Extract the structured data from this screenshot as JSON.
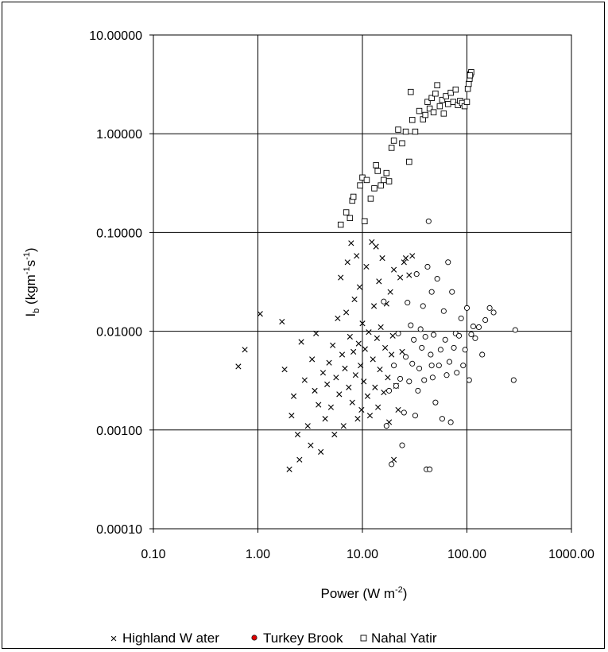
{
  "chart_data": {
    "type": "scatter",
    "title": "",
    "xlabel": "Power (W m",
    "xlabel_sup": "-2",
    "xlabel_end": ")",
    "ylabel_base": "I",
    "ylabel_sub": "b",
    "ylabel_mid": " (kgm",
    "ylabel_sup1": "-1",
    "ylabel_s": "s",
    "ylabel_sup2": "-1",
    "ylabel_end": ")",
    "x_scale": "log",
    "y_scale": "log",
    "xlim": [
      0.1,
      1000
    ],
    "ylim": [
      0.0001,
      10
    ],
    "x_ticks": [
      {
        "value": 0.1,
        "label": "0.10"
      },
      {
        "value": 1,
        "label": "1.00"
      },
      {
        "value": 10,
        "label": "10.00"
      },
      {
        "value": 100,
        "label": "100.00"
      },
      {
        "value": 1000,
        "label": "1000.00"
      }
    ],
    "y_ticks": [
      {
        "value": 0.0001,
        "label": "0.00010"
      },
      {
        "value": 0.001,
        "label": "0.00100"
      },
      {
        "value": 0.01,
        "label": "0.01000"
      },
      {
        "value": 0.1,
        "label": "0.10000"
      },
      {
        "value": 1,
        "label": "1.00000"
      },
      {
        "value": 10,
        "label": "10.00000"
      }
    ],
    "grid": true,
    "legend_position": "bottom",
    "series": [
      {
        "name": "Highland W ater",
        "marker": "x",
        "color": "#000000",
        "points": [
          [
            0.65,
            0.0044
          ],
          [
            0.75,
            0.0065
          ],
          [
            1.05,
            0.015
          ],
          [
            1.7,
            0.0125
          ],
          [
            1.8,
            0.0041
          ],
          [
            2.1,
            0.0014
          ],
          [
            2.0,
            0.0004
          ],
          [
            2.2,
            0.0022
          ],
          [
            2.4,
            0.0009
          ],
          [
            2.5,
            0.0005
          ],
          [
            2.6,
            0.0078
          ],
          [
            2.8,
            0.0032
          ],
          [
            3.0,
            0.0011
          ],
          [
            3.2,
            0.0007
          ],
          [
            3.3,
            0.0052
          ],
          [
            3.5,
            0.0025
          ],
          [
            3.6,
            0.0095
          ],
          [
            3.8,
            0.0018
          ],
          [
            4.0,
            0.0006
          ],
          [
            4.2,
            0.0038
          ],
          [
            4.4,
            0.0013
          ],
          [
            4.6,
            0.0029
          ],
          [
            4.8,
            0.0048
          ],
          [
            5.0,
            0.0017
          ],
          [
            5.2,
            0.0072
          ],
          [
            5.4,
            0.0009
          ],
          [
            5.6,
            0.0034
          ],
          [
            5.8,
            0.0135
          ],
          [
            6.0,
            0.0023
          ],
          [
            6.2,
            0.035
          ],
          [
            6.4,
            0.0058
          ],
          [
            6.6,
            0.0011
          ],
          [
            6.8,
            0.0042
          ],
          [
            7.0,
            0.0155
          ],
          [
            7.2,
            0.05
          ],
          [
            7.4,
            0.0027
          ],
          [
            7.6,
            0.0088
          ],
          [
            7.8,
            0.078
          ],
          [
            8.0,
            0.0019
          ],
          [
            8.2,
            0.0062
          ],
          [
            8.4,
            0.021
          ],
          [
            8.6,
            0.0036
          ],
          [
            8.8,
            0.058
          ],
          [
            9.0,
            0.0013
          ],
          [
            9.2,
            0.0075
          ],
          [
            9.4,
            0.028
          ],
          [
            9.6,
            0.0045
          ],
          [
            9.8,
            0.0016
          ],
          [
            10.0,
            0.012
          ],
          [
            10.3,
            0.0031
          ],
          [
            10.6,
            0.0066
          ],
          [
            10.9,
            0.045
          ],
          [
            11.2,
            0.0022
          ],
          [
            11.5,
            0.0098
          ],
          [
            11.8,
            0.0014
          ],
          [
            12.0,
            0.22
          ],
          [
            12.3,
            0.08
          ],
          [
            12.6,
            0.0052
          ],
          [
            12.9,
            0.018
          ],
          [
            13.2,
            0.0027
          ],
          [
            13.5,
            0.072
          ],
          [
            13.8,
            0.0085
          ],
          [
            14.1,
            0.0017
          ],
          [
            14.4,
            0.032
          ],
          [
            14.7,
            0.0041
          ],
          [
            15.0,
            0.011
          ],
          [
            15.5,
            0.055
          ],
          [
            16.0,
            0.0024
          ],
          [
            16.5,
            0.0068
          ],
          [
            17.0,
            0.019
          ],
          [
            17.5,
            0.0034
          ],
          [
            18.0,
            0.0012
          ],
          [
            18.5,
            0.025
          ],
          [
            19.0,
            0.0058
          ],
          [
            19.5,
            0.009
          ],
          [
            20.0,
            0.042
          ],
          [
            21.0,
            0.0028
          ],
          [
            22.0,
            0.0016
          ],
          [
            23.0,
            0.035
          ],
          [
            24.0,
            0.0062
          ],
          [
            25.0,
            0.05
          ],
          [
            26.0,
            0.055
          ],
          [
            28.0,
            0.037
          ],
          [
            30.0,
            0.058
          ],
          [
            20.0,
            0.0005
          ]
        ]
      },
      {
        "name": "Turkey Brook",
        "marker": "o",
        "color": "#000000",
        "points": [
          [
            16.0,
            0.02
          ],
          [
            17.0,
            0.0011
          ],
          [
            18.0,
            0.0025
          ],
          [
            19.0,
            0.00045
          ],
          [
            20.0,
            0.0045
          ],
          [
            21.0,
            0.0028
          ],
          [
            22.0,
            0.0095
          ],
          [
            23.0,
            0.0033
          ],
          [
            24.0,
            0.0007
          ],
          [
            25.0,
            0.0015
          ],
          [
            26.0,
            0.0055
          ],
          [
            27.0,
            0.0195
          ],
          [
            28.0,
            0.0031
          ],
          [
            29.0,
            0.0115
          ],
          [
            30.0,
            0.0047
          ],
          [
            31.0,
            0.0082
          ],
          [
            32.0,
            0.0014
          ],
          [
            33.0,
            0.038
          ],
          [
            34.0,
            0.0025
          ],
          [
            35.0,
            0.0042
          ],
          [
            36.0,
            0.0105
          ],
          [
            37.0,
            0.0068
          ],
          [
            38.0,
            0.018
          ],
          [
            39.0,
            0.0032
          ],
          [
            40.0,
            0.0088
          ],
          [
            41.0,
            0.0004
          ],
          [
            42.0,
            0.045
          ],
          [
            43.0,
            0.13
          ],
          [
            44.0,
            0.0004
          ],
          [
            45.0,
            0.0058
          ],
          [
            46.0,
            0.025
          ],
          [
            47.0,
            0.0034
          ],
          [
            48.0,
            0.0092
          ],
          [
            50.0,
            0.0019
          ],
          [
            52.0,
            0.034
          ],
          [
            54.0,
            0.0045
          ],
          [
            56.0,
            0.0065
          ],
          [
            58.0,
            0.0013
          ],
          [
            60.0,
            0.016
          ],
          [
            62.0,
            0.0082
          ],
          [
            64.0,
            0.0036
          ],
          [
            66.0,
            0.05
          ],
          [
            68.0,
            0.0049
          ],
          [
            70.0,
            0.0012
          ],
          [
            72.0,
            0.025
          ],
          [
            75.0,
            0.0068
          ],
          [
            78.0,
            0.0095
          ],
          [
            80.0,
            0.0038
          ],
          [
            84.0,
            0.009
          ],
          [
            88.0,
            0.0135
          ],
          [
            92.0,
            0.0045
          ],
          [
            96.0,
            0.0065
          ],
          [
            100.0,
            0.0172
          ],
          [
            105.0,
            0.0032
          ],
          [
            110.0,
            0.0093
          ],
          [
            115.0,
            0.0112
          ],
          [
            120.0,
            0.0085
          ],
          [
            130.0,
            0.011
          ],
          [
            140.0,
            0.0058
          ],
          [
            150.0,
            0.013
          ],
          [
            165.0,
            0.0172
          ],
          [
            180.0,
            0.0155
          ],
          [
            280.0,
            0.0032
          ],
          [
            290.0,
            0.0103
          ],
          [
            46.0,
            0.0045
          ]
        ]
      },
      {
        "name": "Nahal Yatir",
        "marker": "square",
        "color": "#000000",
        "points": [
          [
            6.2,
            0.12
          ],
          [
            7.0,
            0.16
          ],
          [
            7.6,
            0.14
          ],
          [
            8.0,
            0.21
          ],
          [
            8.2,
            0.23
          ],
          [
            9.5,
            0.3
          ],
          [
            10.0,
            0.36
          ],
          [
            10.5,
            0.13
          ],
          [
            11.0,
            0.34
          ],
          [
            12.0,
            0.22
          ],
          [
            13.0,
            0.28
          ],
          [
            13.5,
            0.48
          ],
          [
            14.0,
            0.42
          ],
          [
            15.0,
            0.3
          ],
          [
            16.0,
            0.34
          ],
          [
            17.0,
            0.4
          ],
          [
            18.0,
            0.33
          ],
          [
            19.0,
            0.72
          ],
          [
            20.0,
            0.85
          ],
          [
            22.0,
            1.1
          ],
          [
            24.0,
            0.8
          ],
          [
            26.0,
            1.05
          ],
          [
            28.0,
            0.52
          ],
          [
            29.0,
            2.65
          ],
          [
            30.0,
            1.38
          ],
          [
            32.0,
            1.05
          ],
          [
            35.0,
            1.7
          ],
          [
            38.0,
            1.4
          ],
          [
            40.0,
            1.55
          ],
          [
            42.0,
            2.1
          ],
          [
            44.0,
            1.8
          ],
          [
            46.0,
            2.3
          ],
          [
            48.0,
            1.65
          ],
          [
            50.0,
            2.55
          ],
          [
            52.0,
            3.1
          ],
          [
            55.0,
            1.9
          ],
          [
            58.0,
            2.2
          ],
          [
            60.0,
            1.6
          ],
          [
            63.0,
            2.4
          ],
          [
            66.0,
            2.0
          ],
          [
            70.0,
            2.6
          ],
          [
            74.0,
            2.1
          ],
          [
            78.0,
            2.8
          ],
          [
            82.0,
            1.95
          ],
          [
            86.0,
            2.15
          ],
          [
            90.0,
            2.05
          ],
          [
            95.0,
            1.9
          ],
          [
            100.0,
            2.1
          ],
          [
            102.0,
            2.85
          ],
          [
            104.0,
            3.2
          ],
          [
            106.0,
            3.6
          ],
          [
            108.0,
            4.0
          ],
          [
            110.0,
            4.2
          ],
          [
            107.0,
            3.9
          ]
        ]
      }
    ]
  }
}
